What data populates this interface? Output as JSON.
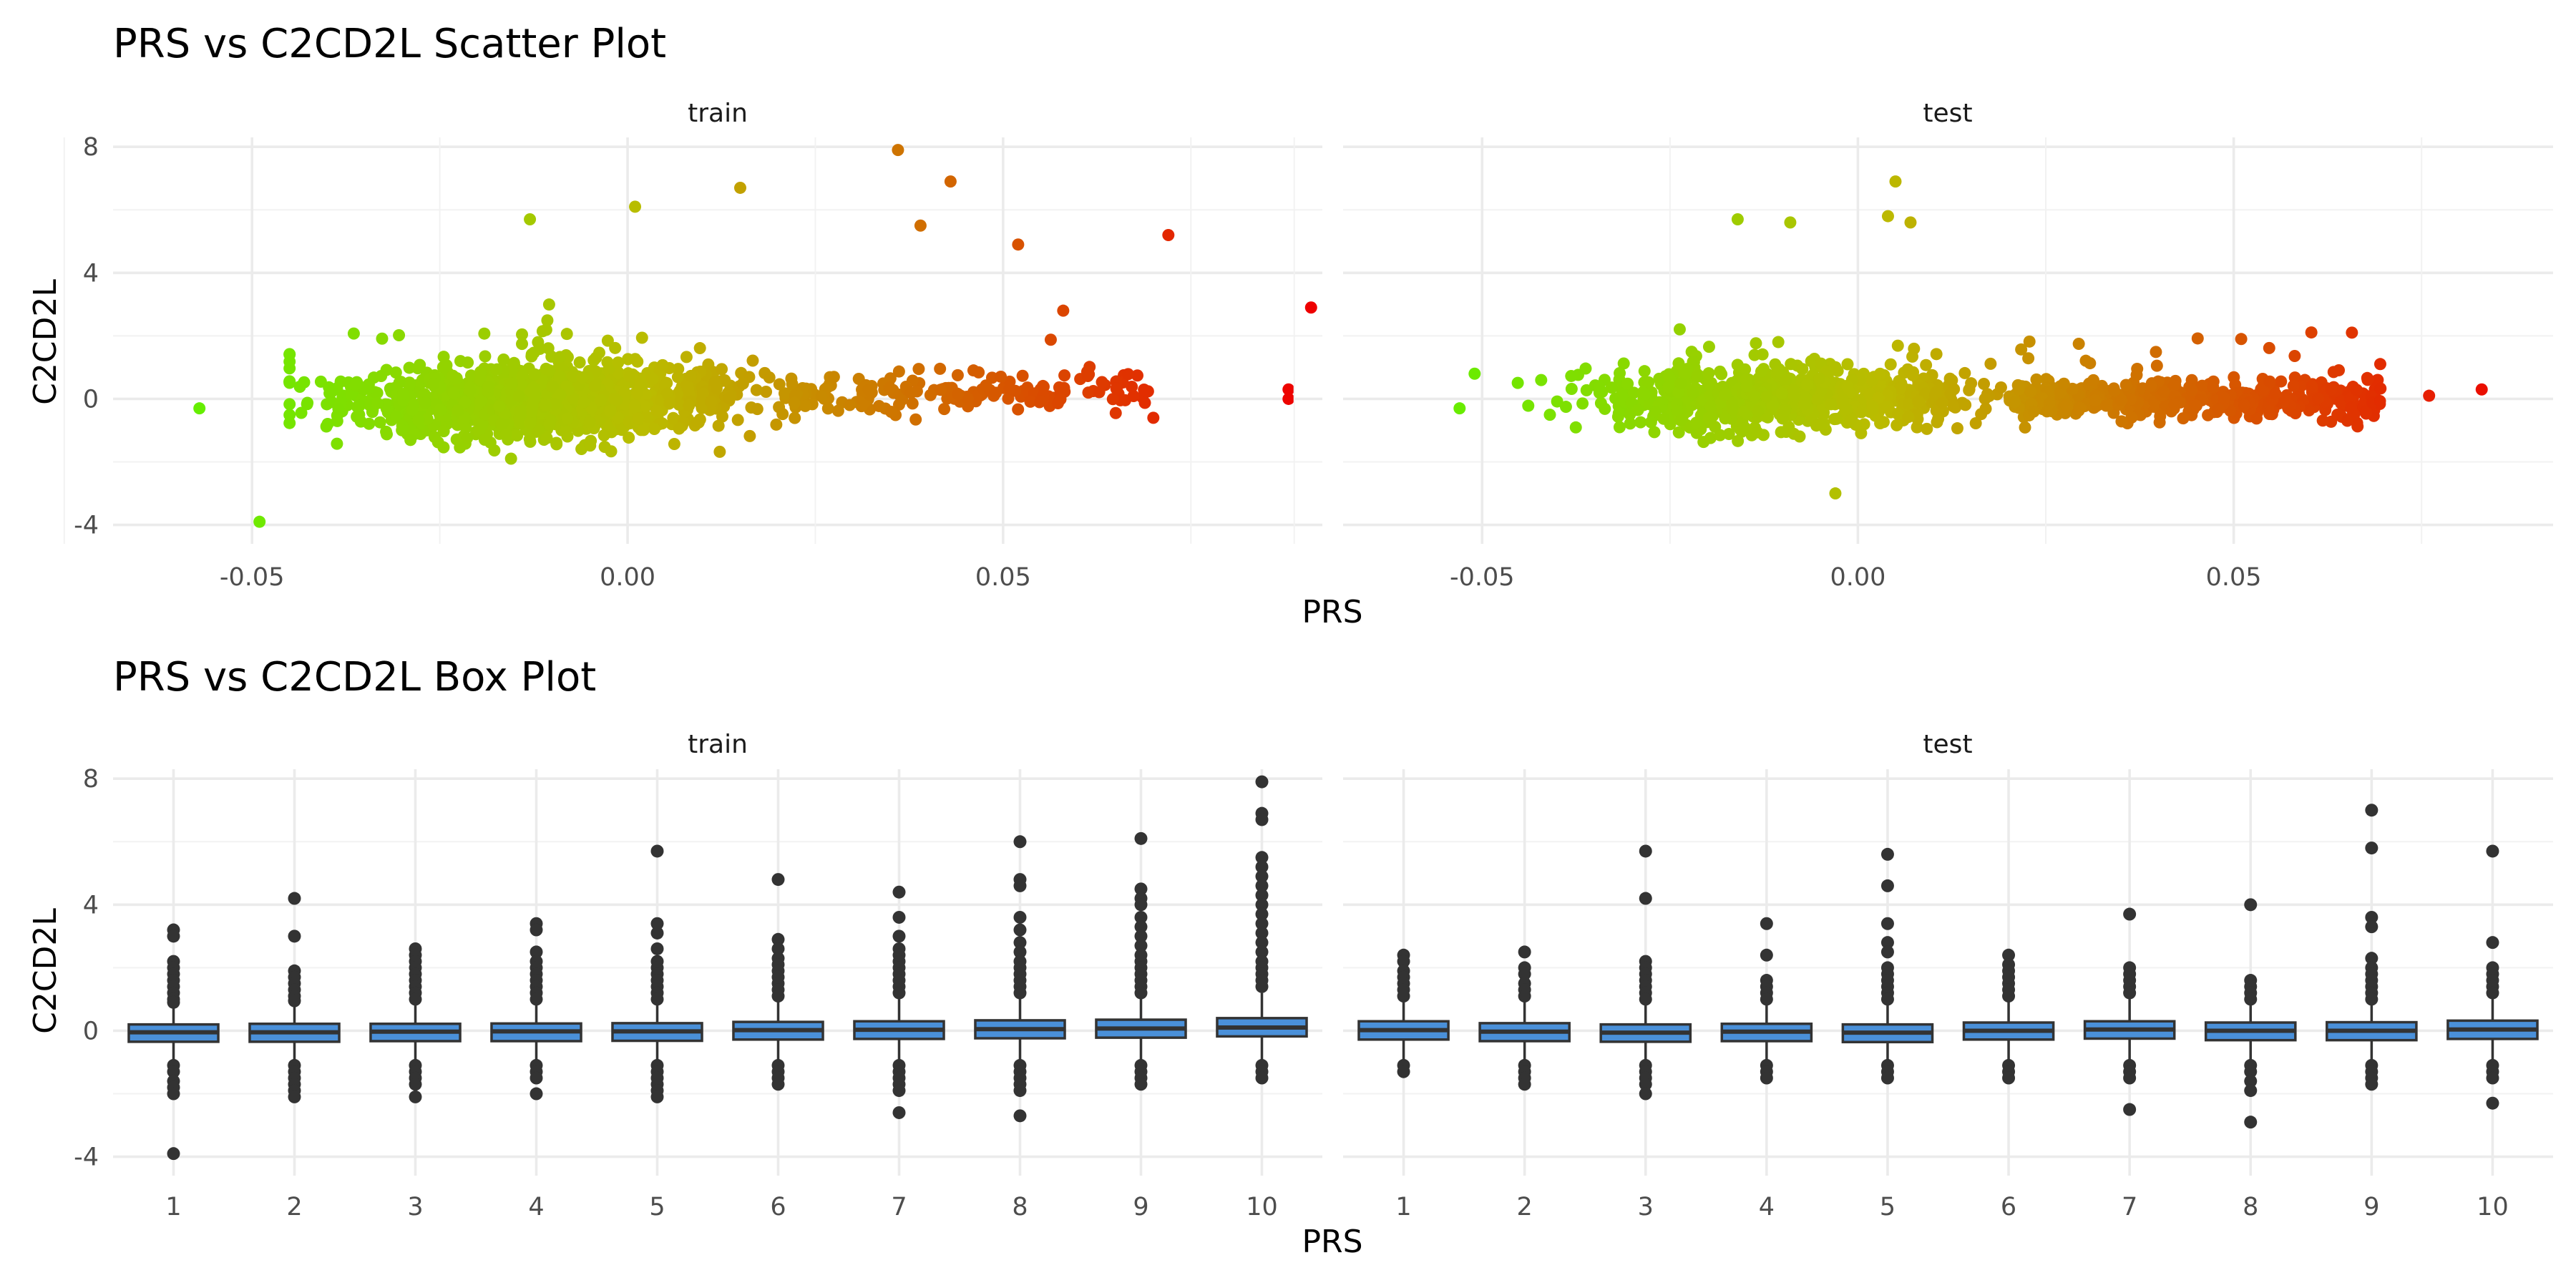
{
  "chart_data": [
    {
      "type": "scatter",
      "title": "PRS vs C2CD2L Scatter Plot",
      "xlabel": "PRS",
      "ylabel": "C2CD2L",
      "facets": [
        "train",
        "test"
      ],
      "x_ticks": [
        "-0.05",
        "0.00",
        "0.05"
      ],
      "y_ticks": [
        "-4",
        "0",
        "4",
        "8"
      ],
      "xlim": [
        -0.0685,
        0.0925
      ],
      "ylim": [
        -4.6,
        8.3
      ],
      "color_scale": {
        "low": "#66ee00",
        "mid": "#bbbb00",
        "high": "#ee0000"
      },
      "notable_points": {
        "train": [
          {
            "x": -0.057,
            "y": -0.3
          },
          {
            "x": -0.049,
            "y": -3.9
          },
          {
            "x": -0.013,
            "y": 5.7
          },
          {
            "x": 0.001,
            "y": 6.1
          },
          {
            "x": 0.015,
            "y": 6.7
          },
          {
            "x": 0.036,
            "y": 7.9
          },
          {
            "x": 0.039,
            "y": 5.5
          },
          {
            "x": 0.043,
            "y": 6.9
          },
          {
            "x": 0.052,
            "y": 4.9
          },
          {
            "x": 0.058,
            "y": 2.8
          },
          {
            "x": 0.072,
            "y": 5.2
          },
          {
            "x": 0.088,
            "y": 0.3
          },
          {
            "x": 0.088,
            "y": 0.0
          },
          {
            "x": 0.091,
            "y": 2.9
          },
          {
            "x": 0.07,
            "y": -0.6
          }
        ],
        "test": [
          {
            "x": -0.051,
            "y": 0.8
          },
          {
            "x": -0.053,
            "y": -0.3
          },
          {
            "x": -0.016,
            "y": 5.7
          },
          {
            "x": -0.009,
            "y": 5.6
          },
          {
            "x": 0.004,
            "y": 5.8
          },
          {
            "x": 0.005,
            "y": 6.9
          },
          {
            "x": 0.007,
            "y": 5.6
          },
          {
            "x": -0.003,
            "y": -3.0
          },
          {
            "x": 0.063,
            "y": 0.3
          },
          {
            "x": 0.076,
            "y": 0.1
          },
          {
            "x": 0.083,
            "y": 0.3
          },
          {
            "x": 0.051,
            "y": 1.9
          }
        ]
      }
    },
    {
      "type": "box",
      "title": "PRS vs C2CD2L Box Plot",
      "xlabel": "PRS",
      "ylabel": "C2CD2L",
      "facets": [
        "train",
        "test"
      ],
      "categories": [
        "1",
        "2",
        "3",
        "4",
        "5",
        "6",
        "7",
        "8",
        "9",
        "10"
      ],
      "y_ticks": [
        "-4",
        "0",
        "4",
        "8"
      ],
      "ylim": [
        -4.6,
        8.3
      ],
      "box_color": "#4a90d9",
      "panels": [
        {
          "facet": "train",
          "boxes": [
            {
              "q1": -0.35,
              "median": -0.05,
              "q3": 0.2,
              "whisker_low": -1.0,
              "whisker_high": 0.85,
              "outliers": [
                3.2,
                3.0,
                2.2,
                2.0,
                1.8,
                1.6,
                1.4,
                1.2,
                1.0,
                0.9,
                -1.1,
                -1.3,
                -1.6,
                -1.8,
                -2.0,
                -3.9
              ]
            },
            {
              "q1": -0.35,
              "median": -0.05,
              "q3": 0.22,
              "whisker_low": -1.0,
              "whisker_high": 0.9,
              "outliers": [
                4.2,
                3.0,
                1.9,
                1.7,
                1.5,
                1.3,
                1.1,
                0.95,
                -1.1,
                -1.3,
                -1.5,
                -1.7,
                -1.9,
                -2.1
              ]
            },
            {
              "q1": -0.33,
              "median": -0.03,
              "q3": 0.22,
              "whisker_low": -1.0,
              "whisker_high": 0.9,
              "outliers": [
                2.6,
                2.4,
                2.2,
                2.0,
                1.8,
                1.6,
                1.4,
                1.2,
                1.0,
                -1.1,
                -1.3,
                -1.5,
                -1.7,
                -2.1
              ]
            },
            {
              "q1": -0.33,
              "median": -0.02,
              "q3": 0.23,
              "whisker_low": -1.0,
              "whisker_high": 0.9,
              "outliers": [
                3.4,
                3.2,
                2.5,
                2.2,
                2.0,
                1.8,
                1.6,
                1.4,
                1.2,
                1.0,
                -1.1,
                -1.3,
                -1.5,
                -2.0
              ]
            },
            {
              "q1": -0.32,
              "median": -0.02,
              "q3": 0.24,
              "whisker_low": -1.0,
              "whisker_high": 0.92,
              "outliers": [
                5.7,
                3.4,
                3.1,
                2.6,
                2.2,
                2.0,
                1.8,
                1.6,
                1.4,
                1.2,
                1.0,
                -1.1,
                -1.3,
                -1.5,
                -1.7,
                -1.9,
                -2.1
              ]
            },
            {
              "q1": -0.28,
              "median": 0.02,
              "q3": 0.28,
              "whisker_low": -0.95,
              "whisker_high": 0.95,
              "outliers": [
                4.8,
                2.9,
                2.6,
                2.3,
                2.1,
                1.9,
                1.7,
                1.5,
                1.3,
                1.1,
                -1.1,
                -1.3,
                -1.5,
                -1.7
              ]
            },
            {
              "q1": -0.26,
              "median": 0.03,
              "q3": 0.3,
              "whisker_low": -0.95,
              "whisker_high": 1.0,
              "outliers": [
                4.4,
                3.6,
                3.0,
                2.6,
                2.4,
                2.2,
                2.0,
                1.8,
                1.6,
                1.4,
                1.2,
                -1.1,
                -1.3,
                -1.5,
                -1.7,
                -1.9,
                -2.6
              ]
            },
            {
              "q1": -0.24,
              "median": 0.05,
              "q3": 0.33,
              "whisker_low": -0.95,
              "whisker_high": 1.05,
              "outliers": [
                6.0,
                4.8,
                4.6,
                3.6,
                3.2,
                2.8,
                2.5,
                2.2,
                2.0,
                1.8,
                1.6,
                1.4,
                1.2,
                -1.1,
                -1.3,
                -1.5,
                -1.7,
                -1.9,
                -2.7
              ]
            },
            {
              "q1": -0.22,
              "median": 0.07,
              "q3": 0.35,
              "whisker_low": -0.95,
              "whisker_high": 1.1,
              "outliers": [
                6.1,
                4.5,
                4.2,
                4.0,
                3.6,
                3.3,
                3.0,
                2.7,
                2.4,
                2.2,
                2.0,
                1.8,
                1.6,
                1.4,
                1.2,
                -1.1,
                -1.3,
                -1.5,
                -1.7
              ]
            },
            {
              "q1": -0.18,
              "median": 0.1,
              "q3": 0.4,
              "whisker_low": -0.95,
              "whisker_high": 1.2,
              "outliers": [
                7.9,
                6.9,
                6.7,
                5.5,
                5.2,
                4.9,
                4.6,
                4.3,
                4.0,
                3.7,
                3.4,
                3.1,
                2.8,
                2.5,
                2.2,
                2.0,
                1.8,
                1.6,
                1.4,
                -1.1,
                -1.3,
                -1.5
              ]
            }
          ]
        },
        {
          "facet": "test",
          "boxes": [
            {
              "q1": -0.28,
              "median": 0.02,
              "q3": 0.3,
              "whisker_low": -0.95,
              "whisker_high": 1.0,
              "outliers": [
                2.4,
                2.2,
                1.9,
                1.7,
                1.5,
                1.3,
                1.1,
                -1.1,
                -1.3
              ]
            },
            {
              "q1": -0.33,
              "median": -0.03,
              "q3": 0.24,
              "whisker_low": -1.0,
              "whisker_high": 0.95,
              "outliers": [
                2.5,
                2.0,
                1.8,
                1.5,
                1.3,
                1.1,
                -1.1,
                -1.3,
                -1.5,
                -1.7
              ]
            },
            {
              "q1": -0.35,
              "median": -0.06,
              "q3": 0.2,
              "whisker_low": -1.0,
              "whisker_high": 0.9,
              "outliers": [
                5.7,
                4.2,
                2.2,
                2.0,
                1.8,
                1.6,
                1.4,
                1.2,
                1.0,
                -1.1,
                -1.3,
                -1.5,
                -1.7,
                -2.0
              ]
            },
            {
              "q1": -0.33,
              "median": -0.03,
              "q3": 0.22,
              "whisker_low": -1.0,
              "whisker_high": 0.9,
              "outliers": [
                3.4,
                2.4,
                1.6,
                1.4,
                1.2,
                1.0,
                -1.1,
                -1.3,
                -1.5
              ]
            },
            {
              "q1": -0.36,
              "median": -0.06,
              "q3": 0.2,
              "whisker_low": -1.0,
              "whisker_high": 0.9,
              "outliers": [
                5.6,
                4.6,
                3.4,
                2.8,
                2.5,
                2.0,
                1.8,
                1.6,
                1.4,
                1.2,
                1.0,
                -1.1,
                -1.3,
                -1.5
              ]
            },
            {
              "q1": -0.28,
              "median": 0.0,
              "q3": 0.26,
              "whisker_low": -0.95,
              "whisker_high": 0.95,
              "outliers": [
                2.4,
                2.1,
                1.9,
                1.7,
                1.5,
                1.3,
                1.1,
                -1.1,
                -1.3,
                -1.5
              ]
            },
            {
              "q1": -0.25,
              "median": 0.04,
              "q3": 0.3,
              "whisker_low": -0.95,
              "whisker_high": 1.0,
              "outliers": [
                3.7,
                2.0,
                1.8,
                1.6,
                1.4,
                1.2,
                -1.1,
                -1.3,
                -1.5,
                -2.5
              ]
            },
            {
              "q1": -0.3,
              "median": 0.0,
              "q3": 0.26,
              "whisker_low": -0.95,
              "whisker_high": 0.95,
              "outliers": [
                4.0,
                1.6,
                1.4,
                1.2,
                1.0,
                -1.1,
                -1.3,
                -1.6,
                -1.9,
                -2.9
              ]
            },
            {
              "q1": -0.3,
              "median": 0.0,
              "q3": 0.27,
              "whisker_low": -0.95,
              "whisker_high": 0.98,
              "outliers": [
                7.0,
                5.8,
                3.6,
                3.3,
                2.3,
                2.0,
                1.8,
                1.6,
                1.4,
                1.2,
                1.0,
                -1.1,
                -1.3,
                -1.5,
                -1.7
              ]
            },
            {
              "q1": -0.26,
              "median": 0.04,
              "q3": 0.32,
              "whisker_low": -0.95,
              "whisker_high": 1.0,
              "outliers": [
                5.7,
                2.8,
                2.0,
                1.8,
                1.6,
                1.4,
                1.2,
                -1.1,
                -1.3,
                -1.5,
                -2.3
              ]
            }
          ]
        }
      ]
    }
  ]
}
